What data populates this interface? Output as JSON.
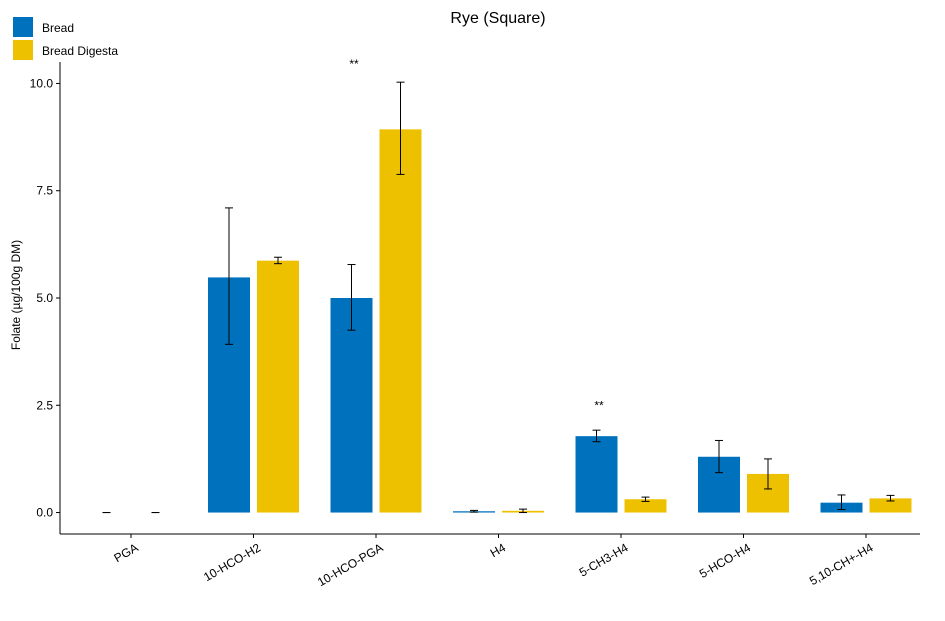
{
  "chart_data": {
    "type": "bar",
    "title": "Rye (Square)",
    "xlabel": "",
    "ylabel": "Folate (µg/100g DM)",
    "ylim": [
      -0.5,
      10.5
    ],
    "yticks": [
      0.0,
      2.5,
      5.0,
      7.5,
      10.0
    ],
    "ytick_labels": [
      "0.0",
      "2.5",
      "5.0",
      "7.5",
      "10.0"
    ],
    "categories": [
      "PGA",
      "10-HCO-H2",
      "10-HCO-PGA",
      "H4",
      "5-CH3-H4",
      "5-HCO-H4",
      "5,10-CH+-H4"
    ],
    "series": [
      {
        "name": "Bread",
        "color": "#0072BD",
        "values": [
          0.0,
          5.48,
          5.0,
          0.03,
          1.78,
          1.3,
          0.23
        ],
        "err_low": [
          0.0,
          3.92,
          4.25,
          0.01,
          1.65,
          0.93,
          0.07
        ],
        "err_high": [
          0.0,
          7.1,
          5.78,
          0.05,
          1.92,
          1.68,
          0.41
        ]
      },
      {
        "name": "Bread Digesta",
        "color": "#EDC000",
        "values": [
          0.0,
          5.87,
          8.93,
          0.04,
          0.31,
          0.9,
          0.33
        ],
        "err_low": [
          0.0,
          5.8,
          7.88,
          0.0,
          0.26,
          0.55,
          0.27
        ],
        "err_high": [
          0.0,
          5.95,
          10.03,
          0.08,
          0.36,
          1.25,
          0.4
        ]
      }
    ],
    "annotations": [
      {
        "category": "10-HCO-PGA",
        "text": "**",
        "y": 10.45
      },
      {
        "category": "5-CH3-H4",
        "text": "**",
        "y": 2.5
      }
    ],
    "legend_position": "top-left",
    "grid": false
  }
}
